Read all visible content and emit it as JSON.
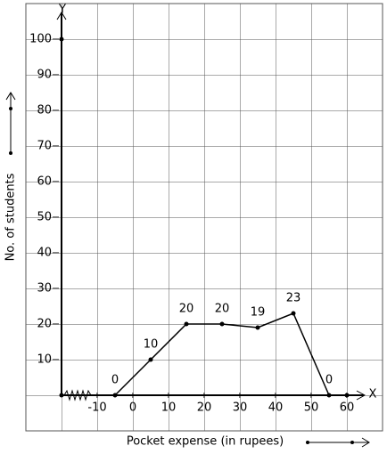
{
  "chart_data": {
    "type": "line",
    "x": [
      -5,
      5,
      15,
      25,
      35,
      45,
      55
    ],
    "values": [
      0,
      10,
      20,
      20,
      19,
      23,
      0
    ],
    "color": "#000000",
    "xlim": [
      -30,
      70
    ],
    "xticks": [
      -10,
      0,
      10,
      20,
      30,
      40,
      50,
      60
    ],
    "ylim": [
      -10,
      110
    ],
    "yticks": [
      10,
      20,
      30,
      40,
      50,
      60,
      70,
      80,
      90,
      100
    ],
    "x_label": "Pocket expense (in rupees)",
    "y_label": "No. of students",
    "x_axis_name": "X",
    "y_axis_name": "Y"
  }
}
